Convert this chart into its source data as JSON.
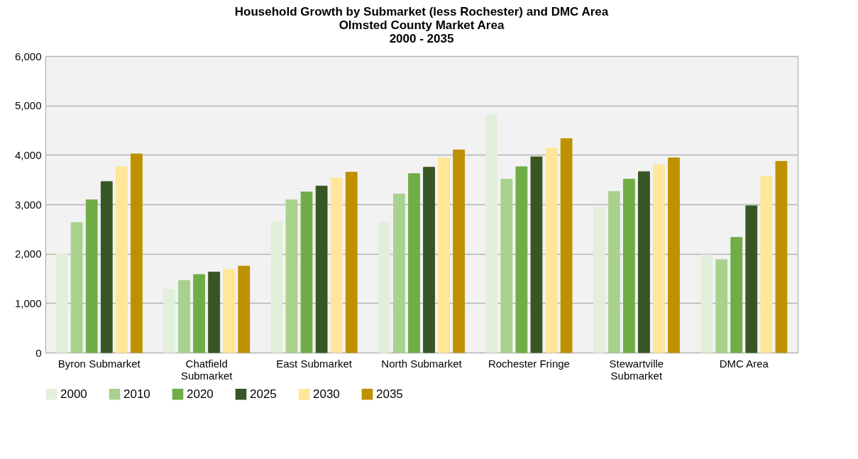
{
  "chart_data": {
    "type": "bar",
    "title": "Household Growth by Submarket (less Rochester) and DMC Area\nOlmsted County Market Area\n2000 - 2035",
    "categories": [
      "Byron Submarket",
      "Chatfield Submarket",
      "East Submarket",
      "North Submarket",
      "Rochester Fringe",
      "Stewartville Submarket",
      "DMC Area"
    ],
    "series": [
      {
        "name": "2000",
        "color": "#e2efda",
        "values": [
          2000,
          1280,
          2650,
          2640,
          4810,
          2930,
          1980
        ]
      },
      {
        "name": "2010",
        "color": "#a9d18e",
        "values": [
          2630,
          1460,
          3090,
          3210,
          3510,
          3260,
          1880
        ]
      },
      {
        "name": "2020",
        "color": "#70ad47",
        "values": [
          3090,
          1580,
          3250,
          3620,
          3760,
          3510,
          2330
        ]
      },
      {
        "name": "2025",
        "color": "#375623",
        "values": [
          3460,
          1630,
          3370,
          3750,
          3960,
          3660,
          2970
        ]
      },
      {
        "name": "2030",
        "color": "#ffe699",
        "values": [
          3760,
          1680,
          3530,
          3940,
          4140,
          3800,
          3570
        ]
      },
      {
        "name": "2035",
        "color": "#bf9000",
        "values": [
          4020,
          1750,
          3650,
          4100,
          4330,
          3940,
          3870
        ]
      }
    ],
    "ylim": [
      0,
      6000
    ],
    "yticks": [
      0,
      {
        "value": 1000,
        "label": "1,000"
      },
      {
        "value": 2000,
        "label": "2,000"
      },
      {
        "value": 3000,
        "label": "3,000"
      },
      {
        "value": 4000,
        "label": "4,000"
      },
      {
        "value": 5000,
        "label": "5,000"
      },
      {
        "value": 6000,
        "label": "6,000"
      }
    ],
    "grid": "y",
    "legend": "bottom"
  }
}
